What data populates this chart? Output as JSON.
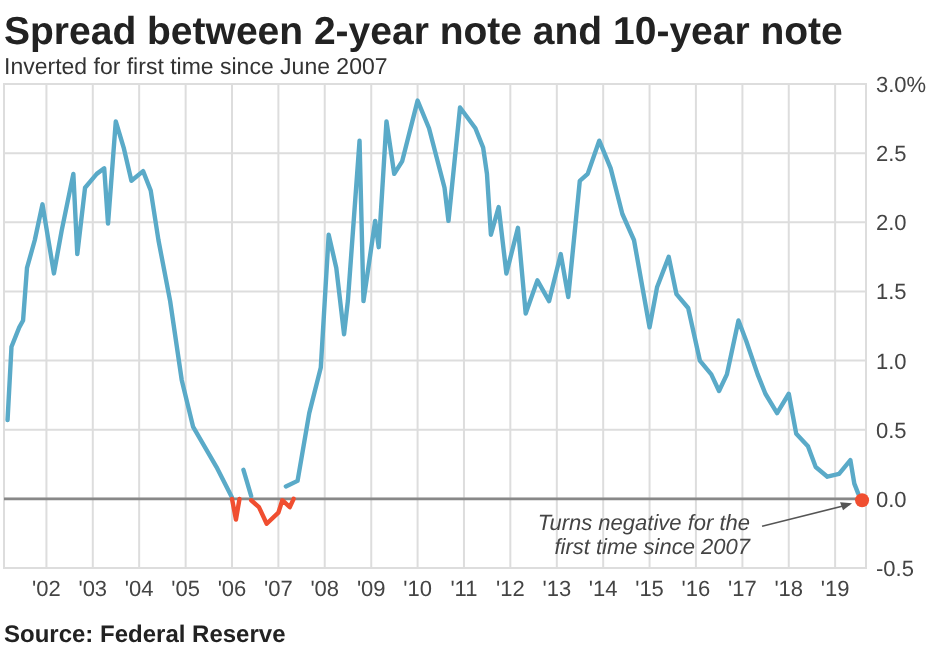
{
  "chart_data": {
    "type": "line",
    "title": "Spread between 2-year note and 10-year note",
    "subtitle": "Inverted for first time since June 2007",
    "annotations": [
      "Source: Federal Reserve",
      {
        "text": "Turns negative for the\nfirst time since 2007",
        "x": "2019-08",
        "y": -0.01
      }
    ],
    "xlim": [
      "2001-02",
      "2019-09"
    ],
    "xticks": [
      {
        "value": "2002",
        "label": "'02"
      },
      {
        "value": "2003",
        "label": "'03"
      },
      {
        "value": "2004",
        "label": "'04"
      },
      {
        "value": "2005",
        "label": "'05"
      },
      {
        "value": "2006",
        "label": "'06"
      },
      {
        "value": "2007",
        "label": "'07"
      },
      {
        "value": "2008",
        "label": "'08"
      },
      {
        "value": "2009",
        "label": "'09"
      },
      {
        "value": "2010",
        "label": "'10"
      },
      {
        "value": "2011",
        "label": "'11"
      },
      {
        "value": "2012",
        "label": "'12"
      },
      {
        "value": "2013",
        "label": "'13"
      },
      {
        "value": "2014",
        "label": "'14"
      },
      {
        "value": "2015",
        "label": "'15"
      },
      {
        "value": "2016",
        "label": "'16"
      },
      {
        "value": "2017",
        "label": "'17"
      },
      {
        "value": "2018",
        "label": "'18"
      },
      {
        "value": "2019",
        "label": "'19"
      }
    ],
    "ylim": [
      -0.5,
      3.0
    ],
    "yticks": [
      {
        "value": -0.5,
        "label": "-0.5"
      },
      {
        "value": 0,
        "label": "0.0"
      },
      {
        "value": 0.5,
        "label": "0.5"
      },
      {
        "value": 1,
        "label": "1.0"
      },
      {
        "value": 1.5,
        "label": "1.5"
      },
      {
        "value": 2,
        "label": "2.0"
      },
      {
        "value": 2.5,
        "label": "2.5"
      },
      {
        "value": 3,
        "label": "3.0%"
      }
    ],
    "grid": true,
    "ref_lines": [
      {
        "axis": "y",
        "value": 0,
        "color": "#888888"
      }
    ],
    "series": [
      {
        "color": "#5aaac8",
        "x": [
          "2001-03",
          "2001-04",
          "2001-06",
          "2001-07",
          "2001-08",
          "2001-10",
          "2001-12",
          "2002-03",
          "2002-05",
          "2002-08",
          "2002-09",
          "2002-11",
          "2003-02",
          "2003-04",
          "2003-05",
          "2003-07",
          "2003-09",
          "2003-11",
          "2004-02",
          "2004-04",
          "2004-06",
          "2004-09",
          "2004-12",
          "2005-03",
          "2005-09",
          "2006-01",
          "2006-02",
          "2006-04",
          "2006-06",
          "2006-09",
          "2007-03",
          "2007-06",
          "2007-09",
          "2007-12",
          "2008-01",
          "2008-02",
          "2008-04",
          "2008-06",
          "2008-07",
          "2008-10",
          "2008-11",
          "2009-02",
          "2009-03",
          "2009-05",
          "2009-07",
          "2009-09",
          "2010-01",
          "2010-04",
          "2010-08",
          "2010-09",
          "2010-12",
          "2011-04",
          "2011-06",
          "2011-07",
          "2011-08",
          "2011-10",
          "2011-12",
          "2012-03",
          "2012-05",
          "2012-08",
          "2012-11",
          "2013-02",
          "2013-04",
          "2013-07",
          "2013-09",
          "2013-12",
          "2014-03",
          "2014-06",
          "2014-09",
          "2015-01",
          "2015-03",
          "2015-06",
          "2015-08",
          "2015-11",
          "2016-02",
          "2016-05",
          "2016-07",
          "2016-09",
          "2016-12",
          "2017-02",
          "2017-05",
          "2017-07",
          "2017-10",
          "2018-01",
          "2018-03",
          "2018-06",
          "2018-08",
          "2018-11",
          "2019-02",
          "2019-05",
          "2019-06",
          "2019-07"
        ],
        "values": [
          0.57,
          1.1,
          1.24,
          1.29,
          1.67,
          1.87,
          2.13,
          1.63,
          1.94,
          2.35,
          1.77,
          2.25,
          2.35,
          2.39,
          1.99,
          2.73,
          2.54,
          2.3,
          2.37,
          2.23,
          1.87,
          1.43,
          0.86,
          0.52,
          0.23,
          0.01,
          null,
          0.21,
          0.02,
          null,
          0.09,
          0.13,
          0.62,
          0.95,
          1.43,
          1.91,
          1.67,
          1.19,
          1.43,
          2.59,
          1.43,
          2.01,
          1.82,
          2.73,
          2.35,
          2.44,
          2.88,
          2.68,
          2.25,
          2.01,
          2.83,
          2.68,
          2.54,
          2.35,
          1.91,
          2.11,
          1.63,
          1.96,
          1.34,
          1.58,
          1.43,
          1.77,
          1.46,
          2.3,
          2.35,
          2.59,
          2.39,
          2.06,
          1.87,
          1.24,
          1.53,
          1.75,
          1.48,
          1.38,
          1.0,
          0.9,
          0.78,
          0.9,
          1.29,
          1.14,
          0.9,
          0.76,
          0.62,
          0.76,
          0.47,
          0.38,
          0.23,
          0.16,
          0.18,
          0.28,
          0.11,
          0.04
        ]
      },
      {
        "type": "line",
        "color": "#f04e30",
        "x": [
          "2006-01",
          "2006-02",
          "2006-03",
          "2006-05",
          "2006-06",
          "2006-08",
          "2006-10",
          "2007-01",
          "2007-02",
          "2007-04",
          "2007-05"
        ],
        "values": [
          0.0,
          -0.15,
          0.0,
          null,
          -0.01,
          -0.06,
          -0.18,
          -0.1,
          -0.01,
          -0.06,
          0.0
        ]
      },
      {
        "type": "scatter",
        "color": "#f04e30",
        "marker": "circle",
        "x": [
          "2019-08"
        ],
        "values": [
          -0.01
        ]
      }
    ]
  }
}
